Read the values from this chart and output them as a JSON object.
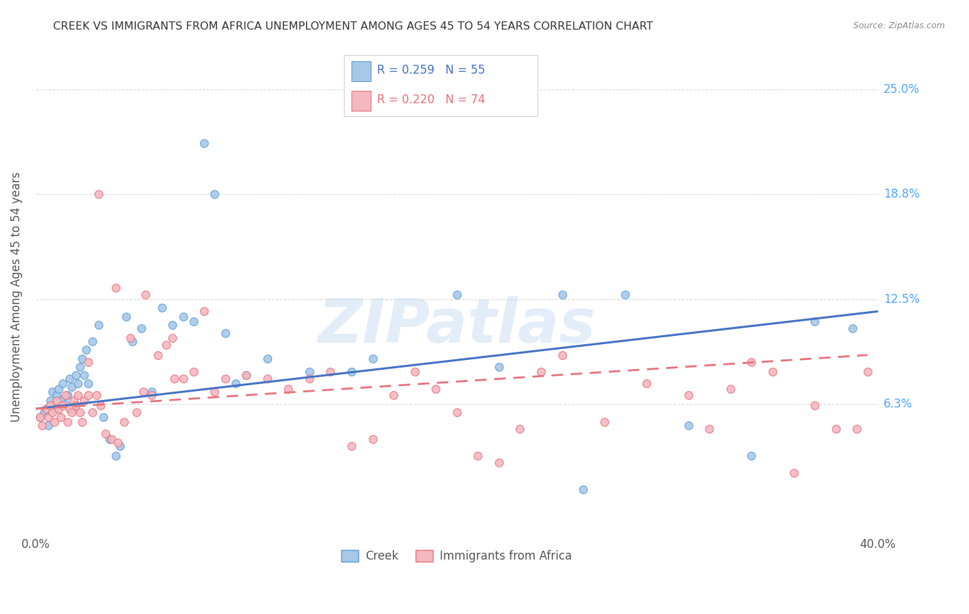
{
  "title": "CREEK VS IMMIGRANTS FROM AFRICA UNEMPLOYMENT AMONG AGES 45 TO 54 YEARS CORRELATION CHART",
  "source": "Source: ZipAtlas.com",
  "ylabel": "Unemployment Among Ages 45 to 54 years",
  "yticks": [
    "6.3%",
    "12.5%",
    "18.8%",
    "25.0%"
  ],
  "ytick_vals": [
    0.063,
    0.125,
    0.188,
    0.25
  ],
  "xmin": 0.0,
  "xmax": 0.4,
  "ymin": -0.015,
  "ymax": 0.268,
  "creek_color": "#a8c8e8",
  "creek_edge_color": "#5b9bd5",
  "africa_color": "#f4b8c0",
  "africa_edge_color": "#e8707a",
  "creek_R": 0.259,
  "creek_N": 55,
  "africa_R": 0.22,
  "africa_N": 74,
  "creek_scatter_x": [
    0.002,
    0.004,
    0.005,
    0.006,
    0.007,
    0.008,
    0.009,
    0.01,
    0.011,
    0.012,
    0.013,
    0.014,
    0.015,
    0.016,
    0.017,
    0.018,
    0.019,
    0.02,
    0.021,
    0.022,
    0.023,
    0.024,
    0.025,
    0.027,
    0.03,
    0.032,
    0.035,
    0.038,
    0.04,
    0.043,
    0.046,
    0.05,
    0.055,
    0.06,
    0.065,
    0.07,
    0.075,
    0.08,
    0.085,
    0.09,
    0.095,
    0.1,
    0.11,
    0.13,
    0.15,
    0.16,
    0.2,
    0.22,
    0.25,
    0.26,
    0.28,
    0.31,
    0.34,
    0.37,
    0.388
  ],
  "creek_scatter_y": [
    0.055,
    0.058,
    0.06,
    0.05,
    0.065,
    0.07,
    0.06,
    0.068,
    0.072,
    0.065,
    0.075,
    0.063,
    0.068,
    0.078,
    0.073,
    0.06,
    0.08,
    0.075,
    0.085,
    0.09,
    0.08,
    0.095,
    0.075,
    0.1,
    0.11,
    0.055,
    0.042,
    0.032,
    0.038,
    0.115,
    0.1,
    0.108,
    0.07,
    0.12,
    0.11,
    0.115,
    0.112,
    0.218,
    0.188,
    0.105,
    0.075,
    0.08,
    0.09,
    0.082,
    0.082,
    0.09,
    0.128,
    0.085,
    0.128,
    0.012,
    0.128,
    0.05,
    0.032,
    0.112,
    0.108
  ],
  "africa_scatter_x": [
    0.002,
    0.003,
    0.005,
    0.006,
    0.007,
    0.008,
    0.009,
    0.01,
    0.011,
    0.012,
    0.013,
    0.014,
    0.015,
    0.016,
    0.017,
    0.018,
    0.019,
    0.02,
    0.021,
    0.022,
    0.023,
    0.025,
    0.027,
    0.029,
    0.031,
    0.033,
    0.036,
    0.039,
    0.042,
    0.045,
    0.048,
    0.051,
    0.055,
    0.058,
    0.062,
    0.066,
    0.07,
    0.075,
    0.08,
    0.085,
    0.09,
    0.1,
    0.11,
    0.12,
    0.13,
    0.14,
    0.15,
    0.16,
    0.17,
    0.18,
    0.19,
    0.2,
    0.21,
    0.22,
    0.23,
    0.24,
    0.25,
    0.27,
    0.29,
    0.31,
    0.32,
    0.33,
    0.34,
    0.35,
    0.36,
    0.37,
    0.38,
    0.39,
    0.395,
    0.025,
    0.03,
    0.038,
    0.052,
    0.065
  ],
  "africa_scatter_y": [
    0.055,
    0.05,
    0.06,
    0.055,
    0.062,
    0.058,
    0.052,
    0.065,
    0.06,
    0.055,
    0.062,
    0.068,
    0.052,
    0.06,
    0.058,
    0.065,
    0.062,
    0.068,
    0.058,
    0.052,
    0.065,
    0.068,
    0.058,
    0.068,
    0.062,
    0.045,
    0.042,
    0.04,
    0.052,
    0.102,
    0.058,
    0.07,
    0.068,
    0.092,
    0.098,
    0.078,
    0.078,
    0.082,
    0.118,
    0.07,
    0.078,
    0.08,
    0.078,
    0.072,
    0.078,
    0.082,
    0.038,
    0.042,
    0.068,
    0.082,
    0.072,
    0.058,
    0.032,
    0.028,
    0.048,
    0.082,
    0.092,
    0.052,
    0.075,
    0.068,
    0.048,
    0.072,
    0.088,
    0.082,
    0.022,
    0.062,
    0.048,
    0.048,
    0.082,
    0.088,
    0.188,
    0.132,
    0.128,
    0.102
  ],
  "creek_line_x": [
    0.0,
    0.4
  ],
  "creek_line_y": [
    0.06,
    0.118
  ],
  "africa_line_x": [
    0.0,
    0.395
  ],
  "africa_line_y": [
    0.06,
    0.092
  ],
  "grid_color": "#d8d8d8",
  "grid_style": "--",
  "background_color": "#ffffff",
  "title_color": "#333333",
  "axis_label_color": "#555555",
  "creek_label": "Creek",
  "africa_label": "Immigrants from Africa",
  "creek_line_color": "#4472c4",
  "africa_line_color": "#e8707a",
  "watermark": "ZIPatlas",
  "right_ytick_color": "#4da6ff"
}
